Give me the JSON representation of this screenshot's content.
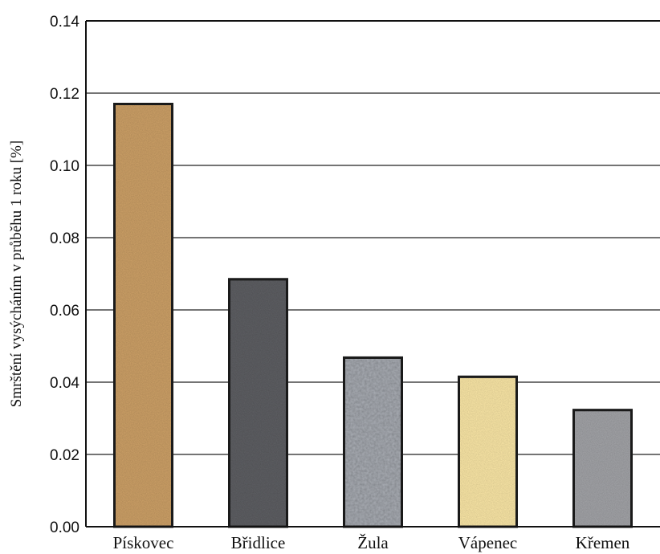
{
  "chart_data": {
    "type": "bar",
    "title": "",
    "xlabel": "",
    "ylabel": "Smrštění vysýcháním v průběhu 1 roku [%]",
    "categories": [
      "Pískovec",
      "Břidlice",
      "Žula",
      "Vápenec",
      "Křemen"
    ],
    "values": [
      0.117,
      0.0685,
      0.0468,
      0.0415,
      0.0323
    ],
    "ylim": [
      0,
      0.14
    ],
    "yticks": [
      "0.00",
      "0.02",
      "0.04",
      "0.06",
      "0.08",
      "0.10",
      "0.12",
      "0.14"
    ],
    "grid": true,
    "colors": [
      "#cfa268",
      "#5f6064",
      "#a9adb4",
      "#fde9a8",
      "#a4a5a9"
    ],
    "textures": [
      "sandstone",
      "slate",
      "granite",
      "limestone",
      "quartz"
    ]
  }
}
